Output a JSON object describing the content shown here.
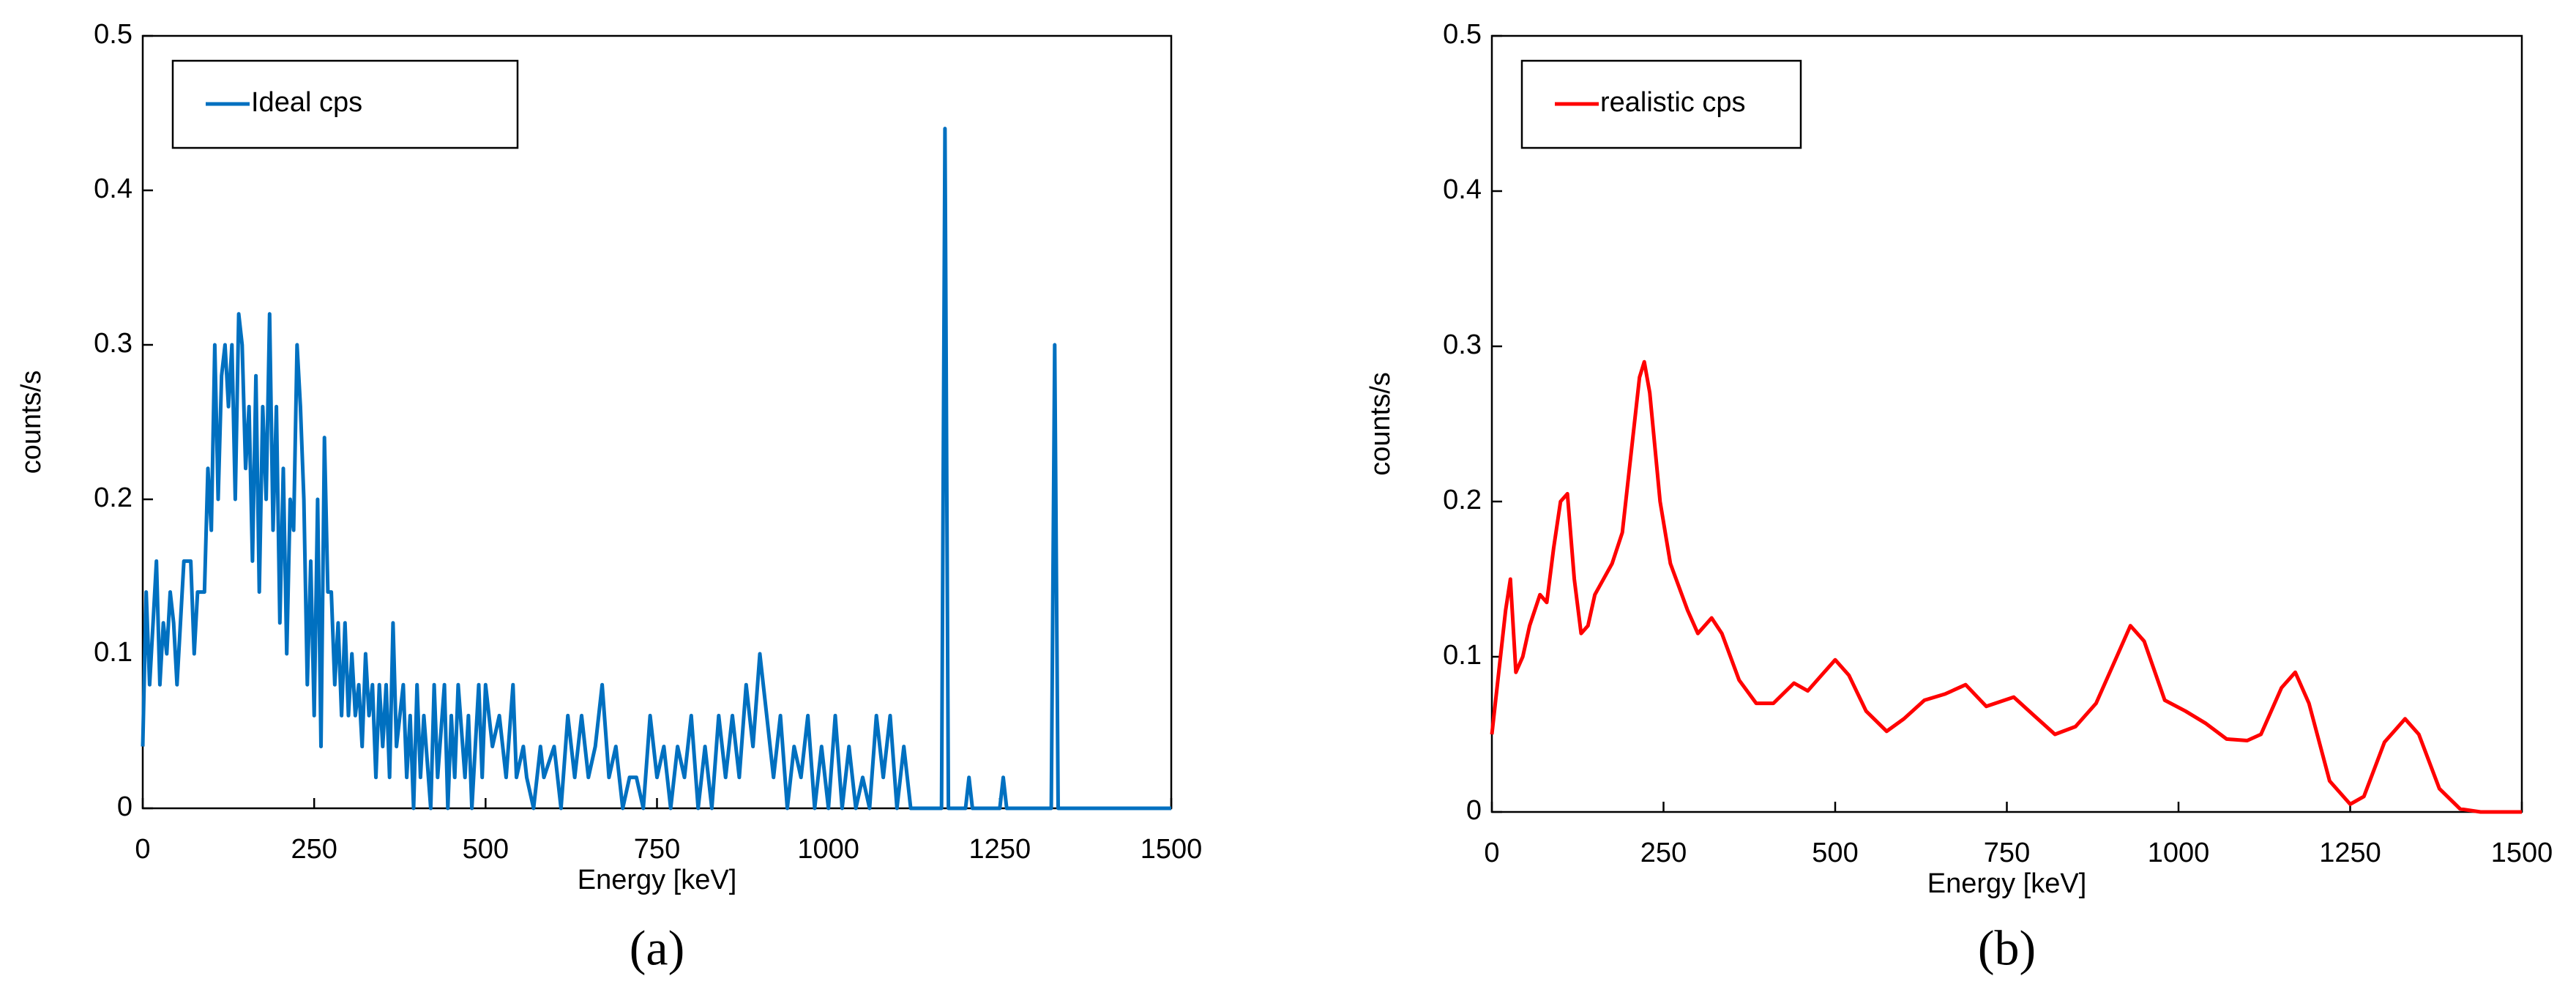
{
  "chart_data": [
    {
      "type": "line",
      "caption": "(a)",
      "xlabel": "Energy [keV]",
      "ylabel": "counts/s",
      "xlim": [
        0,
        1500
      ],
      "xticks": [
        0,
        250,
        500,
        750,
        1000,
        1250,
        1500
      ],
      "ylim": [
        0,
        0.5
      ],
      "yticks": [
        0,
        0.1,
        0.2,
        0.3,
        0.4,
        0.5
      ],
      "legend": "upper left",
      "series": [
        {
          "name": "Ideal cps",
          "color": "#0070c0",
          "x": [
            0,
            5,
            10,
            15,
            20,
            25,
            30,
            35,
            40,
            45,
            50,
            55,
            60,
            70,
            75,
            80,
            90,
            95,
            100,
            105,
            110,
            115,
            120,
            125,
            130,
            135,
            140,
            145,
            150,
            155,
            160,
            165,
            170,
            175,
            180,
            185,
            190,
            195,
            200,
            205,
            210,
            215,
            220,
            225,
            230,
            235,
            240,
            245,
            250,
            255,
            260,
            265,
            270,
            275,
            280,
            285,
            290,
            295,
            300,
            305,
            310,
            315,
            320,
            325,
            330,
            335,
            340,
            345,
            350,
            355,
            360,
            365,
            370,
            380,
            385,
            390,
            395,
            400,
            405,
            410,
            420,
            425,
            430,
            440,
            445,
            450,
            455,
            460,
            470,
            475,
            480,
            490,
            495,
            500,
            510,
            520,
            530,
            540,
            545,
            555,
            560,
            570,
            580,
            585,
            600,
            610,
            620,
            630,
            640,
            650,
            660,
            670,
            680,
            690,
            700,
            710,
            720,
            730,
            740,
            750,
            760,
            770,
            780,
            790,
            800,
            810,
            820,
            830,
            840,
            850,
            860,
            870,
            880,
            890,
            900,
            910,
            920,
            930,
            940,
            950,
            960,
            970,
            980,
            990,
            1000,
            1010,
            1020,
            1030,
            1040,
            1050,
            1060,
            1070,
            1080,
            1090,
            1100,
            1110,
            1120,
            1165,
            1170,
            1175,
            1200,
            1205,
            1210,
            1250,
            1255,
            1260,
            1325,
            1330,
            1335,
            1340,
            1500
          ],
          "values": [
            0.04,
            0.14,
            0.08,
            0.12,
            0.16,
            0.08,
            0.12,
            0.1,
            0.14,
            0.12,
            0.08,
            0.12,
            0.16,
            0.16,
            0.1,
            0.14,
            0.14,
            0.22,
            0.18,
            0.3,
            0.2,
            0.28,
            0.3,
            0.26,
            0.3,
            0.2,
            0.32,
            0.3,
            0.22,
            0.26,
            0.16,
            0.28,
            0.14,
            0.26,
            0.2,
            0.32,
            0.18,
            0.26,
            0.12,
            0.22,
            0.1,
            0.2,
            0.18,
            0.3,
            0.26,
            0.2,
            0.08,
            0.16,
            0.06,
            0.2,
            0.04,
            0.24,
            0.14,
            0.14,
            0.08,
            0.12,
            0.06,
            0.12,
            0.06,
            0.1,
            0.06,
            0.08,
            0.04,
            0.1,
            0.06,
            0.08,
            0.02,
            0.08,
            0.04,
            0.08,
            0.02,
            0.12,
            0.04,
            0.08,
            0.02,
            0.06,
            0,
            0.08,
            0.02,
            0.06,
            0,
            0.08,
            0.02,
            0.08,
            0,
            0.06,
            0.02,
            0.08,
            0.02,
            0.06,
            0,
            0.08,
            0.02,
            0.08,
            0.04,
            0.06,
            0.02,
            0.08,
            0.02,
            0.04,
            0.02,
            0,
            0.04,
            0.02,
            0.04,
            0,
            0.06,
            0.02,
            0.06,
            0.02,
            0.04,
            0.08,
            0.02,
            0.04,
            0,
            0.02,
            0.02,
            0,
            0.06,
            0.02,
            0.04,
            0,
            0.04,
            0.02,
            0.06,
            0,
            0.04,
            0,
            0.06,
            0.02,
            0.06,
            0.02,
            0.08,
            0.04,
            0.1,
            0.06,
            0.02,
            0.06,
            0,
            0.04,
            0.02,
            0.06,
            0,
            0.04,
            0,
            0.06,
            0,
            0.04,
            0,
            0.02,
            0,
            0.06,
            0.02,
            0.06,
            0,
            0.04,
            0,
            0,
            0.44,
            0,
            0,
            0.02,
            0,
            0,
            0.02,
            0,
            0,
            0.3,
            0,
            0,
            0
          ]
        }
      ]
    },
    {
      "type": "line",
      "caption": "(b)",
      "xlabel": "Energy [keV]",
      "ylabel": "counts/s",
      "xlim": [
        0,
        1500
      ],
      "xticks": [
        0,
        250,
        500,
        750,
        1000,
        1250,
        1500
      ],
      "ylim": [
        0,
        0.5
      ],
      "yticks": [
        0,
        0.1,
        0.2,
        0.3,
        0.4,
        0.5
      ],
      "legend": "upper left",
      "series": [
        {
          "name": "realistic cps",
          "color": "#ff0000",
          "x": [
            0,
            10,
            20,
            27,
            35,
            45,
            55,
            70,
            80,
            90,
            100,
            110,
            120,
            130,
            140,
            150,
            175,
            190,
            205,
            215,
            222,
            230,
            245,
            260,
            285,
            300,
            320,
            335,
            360,
            385,
            410,
            440,
            460,
            480,
            500,
            520,
            545,
            575,
            600,
            630,
            660,
            690,
            720,
            760,
            790,
            820,
            850,
            880,
            910,
            930,
            950,
            980,
            1010,
            1040,
            1070,
            1100,
            1120,
            1150,
            1170,
            1190,
            1220,
            1250,
            1270,
            1300,
            1330,
            1350,
            1380,
            1410,
            1440,
            1500
          ],
          "values": [
            0.05,
            0.09,
            0.13,
            0.15,
            0.09,
            0.1,
            0.12,
            0.14,
            0.135,
            0.17,
            0.2,
            0.205,
            0.15,
            0.115,
            0.12,
            0.14,
            0.16,
            0.18,
            0.24,
            0.28,
            0.29,
            0.27,
            0.2,
            0.16,
            0.13,
            0.115,
            0.125,
            0.115,
            0.085,
            0.07,
            0.07,
            0.083,
            0.078,
            0.088,
            0.098,
            0.088,
            0.065,
            0.052,
            0.06,
            0.072,
            0.076,
            0.082,
            0.068,
            0.074,
            0.062,
            0.05,
            0.055,
            0.07,
            0.1,
            0.12,
            0.11,
            0.072,
            0.065,
            0.057,
            0.047,
            0.046,
            0.05,
            0.08,
            0.09,
            0.07,
            0.02,
            0.005,
            0.01,
            0.045,
            0.06,
            0.05,
            0.015,
            0.002,
            0,
            0
          ]
        }
      ]
    }
  ]
}
